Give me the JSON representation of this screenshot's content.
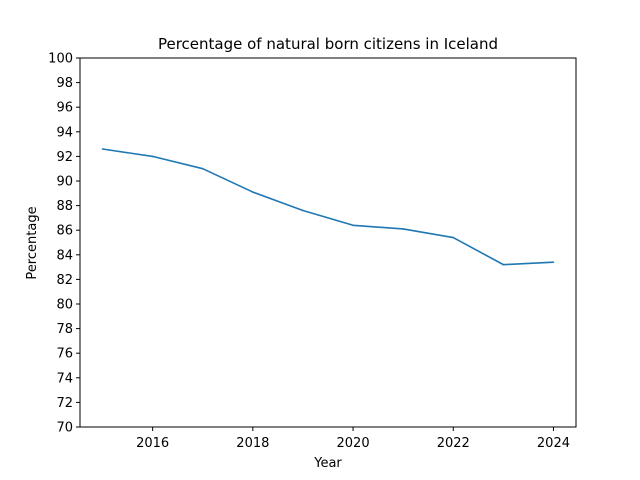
{
  "chart_data": {
    "type": "line",
    "title": "Percentage of natural born citizens in Iceland",
    "xlabel": "Year",
    "ylabel": "Percentage",
    "x": [
      2015,
      2016,
      2017,
      2018,
      2019,
      2020,
      2021,
      2022,
      2023,
      2024
    ],
    "series": [
      {
        "values": [
          92.6,
          92.0,
          91.0,
          89.1,
          87.6,
          86.4,
          86.1,
          85.4,
          83.2,
          83.4
        ],
        "color": "#1f77b4"
      }
    ],
    "xlim": [
      2014.55,
      2024.45
    ],
    "ylim": [
      70,
      100
    ],
    "xticks": [
      "2016",
      "2018",
      "2020",
      "2022",
      "2024"
    ],
    "yticks": [
      "70",
      "72",
      "74",
      "76",
      "78",
      "80",
      "82",
      "84",
      "86",
      "88",
      "90",
      "92",
      "94",
      "96",
      "98",
      "100"
    ],
    "grid": false,
    "legend": "none"
  }
}
